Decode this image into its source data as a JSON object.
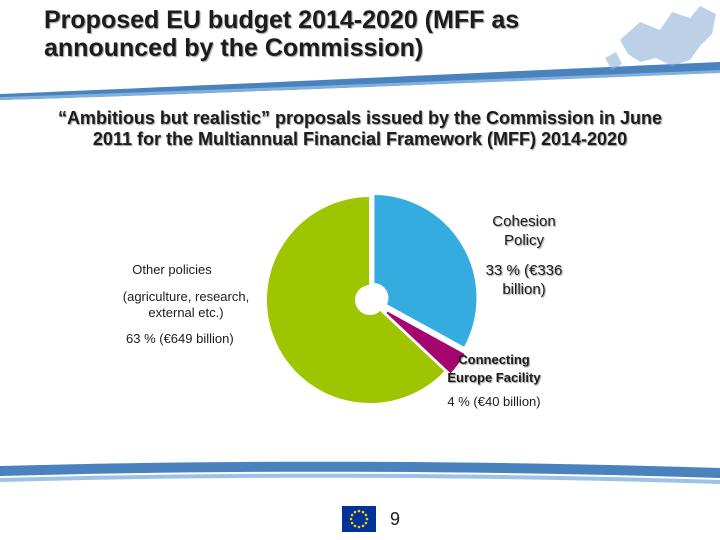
{
  "slide": {
    "title": "Proposed EU budget 2014-2020 (MFF as announced by the Commission)",
    "subtitle": "“Ambitious but realistic” proposals issued by the Commission in June 2011 for the Multiannual Financial Framework (MFF) 2014-2020",
    "page_number": "9",
    "flag_name": "eu-flag"
  },
  "colors": {
    "cohesion": "#35ace0",
    "cef": "#a4056f",
    "other": "#9fc400",
    "band": "#2a6cb3"
  },
  "chart_data": {
    "type": "pie",
    "title": "",
    "slices": [
      {
        "name": "Cohesion Policy",
        "value": 33,
        "label_name": "Cohesion Policy",
        "label_value": "33 % (€336 billion)"
      },
      {
        "name": "Connecting Europe Facility",
        "value": 4,
        "label_name": "Connecting Europe Facility",
        "label_value": "4 % (€40 billion)"
      },
      {
        "name": "Other policies",
        "value": 63,
        "label_name": "Other policies",
        "label_detail": "(agriculture, research, external etc.)",
        "label_value": "63 % (€649 billion)"
      }
    ]
  }
}
